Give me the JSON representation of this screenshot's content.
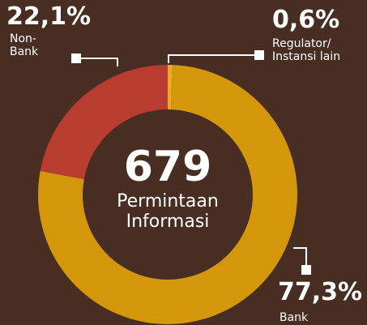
{
  "chart_data": {
    "type": "pie",
    "categories": [
      "Regulator/\nInstansi lain",
      "Bank",
      "Non-\nBank"
    ],
    "values": [
      0.6,
      77.3,
      22.1
    ],
    "value_labels": [
      "0,6%",
      "77,3%",
      "22,1%"
    ],
    "colors": [
      "#e8ab1a",
      "#d4960a",
      "#b83c2f"
    ],
    "total": 679,
    "subtitle": "Permintaan\nInformasi"
  }
}
